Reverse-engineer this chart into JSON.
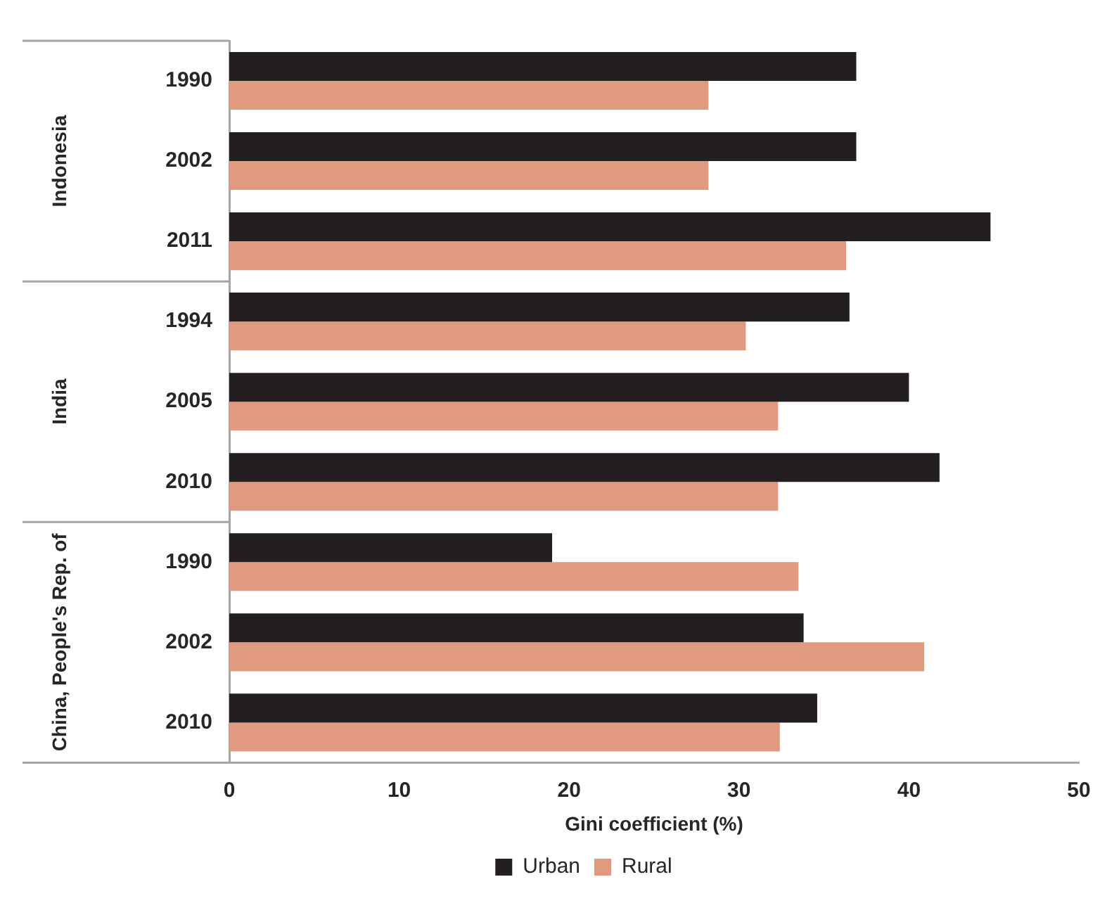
{
  "chart_data": {
    "type": "bar",
    "orientation": "horizontal",
    "xlabel": "Gini coefficient (%)",
    "categories": [
      "1990",
      "2002",
      "2011",
      "1994",
      "2005",
      "2010",
      "1990",
      "2002",
      "2010"
    ],
    "annotations": [
      "Indonesia",
      "India",
      "China, People's Rep. of"
    ],
    "series": [
      {
        "name": "Urban",
        "color": "#231f20",
        "values": [
          36.9,
          36.9,
          44.8,
          36.5,
          40.0,
          41.8,
          19.0,
          33.8,
          34.6
        ]
      },
      {
        "name": "Rural",
        "color": "#e09a80",
        "values": [
          28.2,
          28.2,
          36.3,
          30.4,
          32.3,
          32.3,
          33.5,
          40.9,
          32.4
        ]
      }
    ],
    "xlim": [
      0,
      50
    ],
    "xticks": [
      0,
      10,
      20,
      30,
      40,
      50
    ],
    "grid": false,
    "legend": "bottom"
  }
}
